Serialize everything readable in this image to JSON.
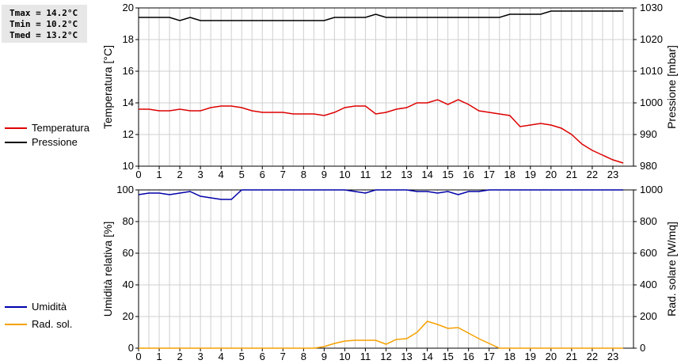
{
  "stats": {
    "tmax": "Tmax = 14.2°C",
    "tmin": "Tmin = 10.2°C",
    "tmed": "Tmed = 13.2°C"
  },
  "legend_top": [
    {
      "label": "Temperatura",
      "color": "#dd0000"
    },
    {
      "label": "Pressione",
      "color": "#000000"
    }
  ],
  "legend_bottom": [
    {
      "label": "Umidità",
      "color": "#0000aa"
    },
    {
      "label": "Rad. sol.",
      "color": "#f5a000"
    }
  ],
  "chart_data": [
    {
      "type": "line",
      "x_ticks": [
        "0",
        "1",
        "2",
        "3",
        "4",
        "5",
        "6",
        "7",
        "8",
        "9",
        "10",
        "11",
        "12",
        "13",
        "14",
        "15",
        "16",
        "17",
        "18",
        "19",
        "20",
        "21",
        "22",
        "23"
      ],
      "xlim": [
        0,
        24
      ],
      "grid": true,
      "ylabel": "Temperatura [°C]",
      "ylim": [
        10,
        20
      ],
      "y_ticks": [
        "10",
        "12",
        "14",
        "16",
        "18",
        "20"
      ],
      "y2label": "Pressione [mbar]",
      "y2lim": [
        980,
        1030
      ],
      "y2_ticks": [
        "980",
        "990",
        "1000",
        "1010",
        "1020",
        "1030"
      ],
      "series": [
        {
          "name": "Temperatura",
          "axis": "left",
          "color": "#dd0000",
          "x": [
            0,
            0.5,
            1,
            1.5,
            2,
            2.5,
            3,
            3.5,
            4,
            4.5,
            5,
            5.5,
            6,
            6.5,
            7,
            7.5,
            8,
            8.5,
            9,
            9.5,
            10,
            10.5,
            11,
            11.5,
            12,
            12.5,
            13,
            13.5,
            14,
            14.5,
            15,
            15.5,
            16,
            16.5,
            17,
            17.5,
            18,
            18.5,
            19,
            19.5,
            20,
            20.5,
            21,
            21.5,
            22,
            22.5,
            23,
            23.5
          ],
          "values": [
            13.6,
            13.6,
            13.5,
            13.5,
            13.6,
            13.5,
            13.5,
            13.7,
            13.8,
            13.8,
            13.7,
            13.5,
            13.4,
            13.4,
            13.4,
            13.3,
            13.3,
            13.3,
            13.2,
            13.4,
            13.7,
            13.8,
            13.8,
            13.3,
            13.4,
            13.6,
            13.7,
            14.0,
            14.0,
            14.2,
            13.9,
            14.2,
            13.9,
            13.5,
            13.4,
            13.3,
            13.2,
            12.5,
            12.6,
            12.7,
            12.6,
            12.4,
            12.0,
            11.4,
            11.0,
            10.7,
            10.4,
            10.2
          ]
        },
        {
          "name": "Pressione",
          "axis": "right",
          "color": "#000000",
          "x": [
            0,
            0.5,
            1,
            1.5,
            2,
            2.5,
            3,
            3.5,
            4,
            4.5,
            5,
            5.5,
            6,
            6.5,
            7,
            7.5,
            8,
            8.5,
            9,
            9.5,
            10,
            10.5,
            11,
            11.5,
            12,
            12.5,
            13,
            13.5,
            14,
            14.5,
            15,
            15.5,
            16,
            16.5,
            17,
            17.5,
            18,
            18.5,
            19,
            19.5,
            20,
            20.5,
            21,
            21.5,
            22,
            22.5,
            23,
            23.5
          ],
          "values": [
            1027,
            1027,
            1027,
            1027,
            1026,
            1027,
            1026,
            1026,
            1026,
            1026,
            1026,
            1026,
            1026,
            1026,
            1026,
            1026,
            1026,
            1026,
            1026,
            1027,
            1027,
            1027,
            1027,
            1028,
            1027,
            1027,
            1027,
            1027,
            1027,
            1027,
            1027,
            1027,
            1027,
            1027,
            1027,
            1027,
            1028,
            1028,
            1028,
            1028,
            1029,
            1029,
            1029,
            1029,
            1029,
            1029,
            1029,
            1029
          ]
        }
      ]
    },
    {
      "type": "line",
      "x_ticks": [
        "0",
        "1",
        "2",
        "3",
        "4",
        "5",
        "6",
        "7",
        "8",
        "9",
        "10",
        "11",
        "12",
        "13",
        "14",
        "15",
        "16",
        "17",
        "18",
        "19",
        "20",
        "21",
        "22",
        "23"
      ],
      "xlim": [
        0,
        24
      ],
      "grid": true,
      "ylabel": "Umidità relativa [%]",
      "ylim": [
        0,
        100
      ],
      "y_ticks": [
        "0",
        "20",
        "40",
        "60",
        "80",
        "100"
      ],
      "y2label": "Rad. solare [W/mq]",
      "y2lim": [
        0,
        1000
      ],
      "y2_ticks": [
        "0",
        "200",
        "400",
        "600",
        "800",
        "1000"
      ],
      "series": [
        {
          "name": "Umidità",
          "axis": "left",
          "color": "#0000aa",
          "x": [
            0,
            0.5,
            1,
            1.5,
            2,
            2.5,
            3,
            3.5,
            4,
            4.5,
            5,
            5.5,
            6,
            6.5,
            7,
            7.5,
            8,
            8.5,
            9,
            9.5,
            10,
            10.5,
            11,
            11.5,
            12,
            12.5,
            13,
            13.5,
            14,
            14.5,
            15,
            15.5,
            16,
            16.5,
            17,
            17.5,
            18,
            18.5,
            19,
            19.5,
            20,
            20.5,
            21,
            21.5,
            22,
            22.5,
            23,
            23.5
          ],
          "values": [
            97,
            98,
            98,
            97,
            98,
            99,
            96,
            95,
            94,
            94,
            100,
            100,
            100,
            100,
            100,
            100,
            100,
            100,
            100,
            100,
            100,
            99,
            98,
            100,
            100,
            100,
            100,
            99,
            99,
            98,
            99,
            97,
            99,
            99,
            100,
            100,
            100,
            100,
            100,
            100,
            100,
            100,
            100,
            100,
            100,
            100,
            100,
            100
          ]
        },
        {
          "name": "Rad. sol.",
          "axis": "right",
          "color": "#f5a000",
          "x": [
            0,
            0.5,
            1,
            1.5,
            2,
            2.5,
            3,
            3.5,
            4,
            4.5,
            5,
            5.5,
            6,
            6.5,
            7,
            7.5,
            8,
            8.5,
            9,
            9.5,
            10,
            10.5,
            11,
            11.5,
            12,
            12.5,
            13,
            13.5,
            14,
            14.5,
            15,
            15.5,
            16,
            16.5,
            17,
            17.5,
            18,
            18.5,
            19,
            19.5,
            20,
            20.5,
            21,
            21.5,
            22,
            22.5,
            23,
            23.5
          ],
          "values": [
            0,
            0,
            0,
            0,
            0,
            0,
            0,
            0,
            0,
            0,
            0,
            0,
            0,
            0,
            0,
            0,
            0,
            0,
            10,
            30,
            45,
            50,
            50,
            50,
            25,
            55,
            60,
            100,
            170,
            150,
            125,
            130,
            95,
            60,
            30,
            0,
            0,
            0,
            0,
            0,
            0,
            0,
            0,
            0,
            0,
            0,
            0,
            0
          ]
        }
      ]
    }
  ]
}
